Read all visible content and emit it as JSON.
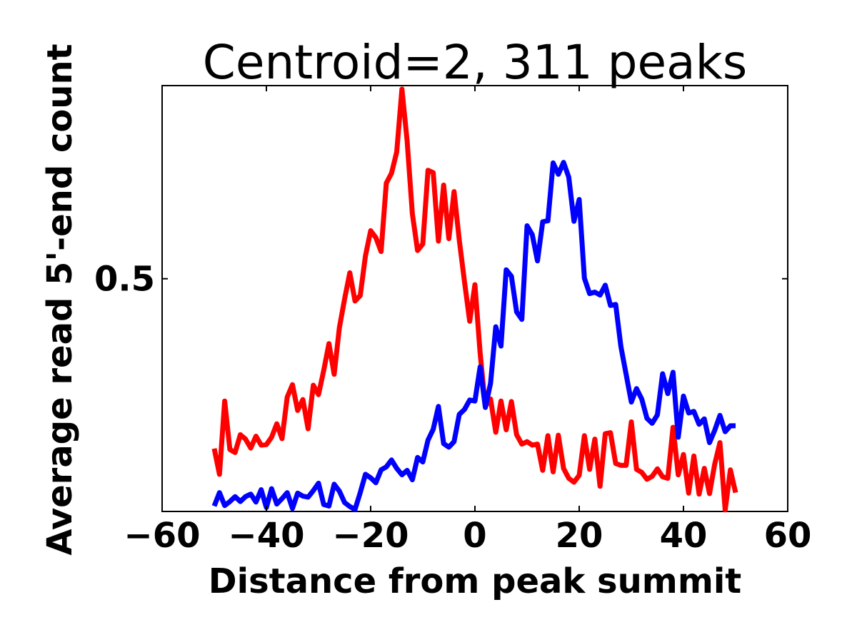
{
  "chart_data": {
    "type": "line",
    "title": "Centroid=2, 311 peaks",
    "xlabel": "Distance from peak summit",
    "ylabel": "Average read 5'-end count",
    "xlim": [
      -60,
      60
    ],
    "ylim": [
      0.03,
      0.89
    ],
    "xticks": [
      -60,
      -40,
      -20,
      0,
      20,
      40,
      60
    ],
    "xtick_labels": [
      "−60",
      "−40",
      "−20",
      "0",
      "20",
      "40",
      "60"
    ],
    "yticks": [
      0.5
    ],
    "ytick_labels": [
      "0.5"
    ],
    "grid": false,
    "series": [
      {
        "color": "#ff0000",
        "x": [
          -50,
          -49,
          -48,
          -47,
          -46,
          -45,
          -44,
          -43,
          -42,
          -41,
          -40,
          -39,
          -38,
          -37,
          -36,
          -35,
          -34,
          -33,
          -32,
          -31,
          -30,
          -29,
          -28,
          -27,
          -26,
          -25,
          -24,
          -23,
          -22,
          -21,
          -20,
          -19,
          -18,
          -17,
          -16,
          -15,
          -14,
          -13,
          -12,
          -11,
          -10,
          -9,
          -8,
          -7,
          -6,
          -5,
          -4,
          -3,
          -2,
          -1,
          0,
          1,
          2,
          3,
          4,
          5,
          6,
          7,
          8,
          9,
          10,
          11,
          12,
          13,
          14,
          15,
          16,
          17,
          18,
          19,
          20,
          21,
          22,
          23,
          24,
          25,
          26,
          27,
          28,
          29,
          30,
          31,
          32,
          33,
          34,
          35,
          36,
          37,
          38,
          39,
          40,
          41,
          42,
          43,
          44,
          45,
          46,
          47,
          48,
          49,
          50
        ],
        "y": [
          0.157,
          0.105,
          0.253,
          0.155,
          0.149,
          0.185,
          0.176,
          0.158,
          0.182,
          0.164,
          0.165,
          0.18,
          0.207,
          0.177,
          0.261,
          0.286,
          0.234,
          0.256,
          0.197,
          0.285,
          0.266,
          0.315,
          0.369,
          0.307,
          0.401,
          0.459,
          0.512,
          0.455,
          0.466,
          0.546,
          0.597,
          0.583,
          0.555,
          0.693,
          0.713,
          0.756,
          0.883,
          0.778,
          0.631,
          0.557,
          0.57,
          0.719,
          0.714,
          0.576,
          0.689,
          0.581,
          0.676,
          0.578,
          0.494,
          0.414,
          0.488,
          0.35,
          0.242,
          0.257,
          0.19,
          0.253,
          0.195,
          0.252,
          0.185,
          0.166,
          0.171,
          0.164,
          0.166,
          0.113,
          0.183,
          0.11,
          0.184,
          0.117,
          0.097,
          0.089,
          0.103,
          0.183,
          0.115,
          0.176,
          0.081,
          0.187,
          0.189,
          0.127,
          0.123,
          0.123,
          0.211,
          0.115,
          0.109,
          0.095,
          0.101,
          0.116,
          0.1,
          0.097,
          0.2,
          0.104,
          0.145,
          0.067,
          0.142,
          0.065,
          0.117,
          0.066,
          0.126,
          0.169,
          0.033,
          0.114,
          0.068
        ]
      },
      {
        "color": "#0000ff",
        "x": [
          -50,
          -49,
          -48,
          -47,
          -46,
          -45,
          -44,
          -43,
          -42,
          -41,
          -40,
          -39,
          -38,
          -37,
          -36,
          -35,
          -34,
          -33,
          -32,
          -31,
          -30,
          -29,
          -28,
          -27,
          -26,
          -25,
          -24,
          -23,
          -22,
          -21,
          -20,
          -19,
          -18,
          -17,
          -16,
          -15,
          -14,
          -13,
          -12,
          -11,
          -10,
          -9,
          -8,
          -7,
          -6,
          -5,
          -4,
          -3,
          -2,
          -1,
          0,
          1,
          2,
          3,
          4,
          5,
          6,
          7,
          8,
          9,
          10,
          11,
          12,
          13,
          14,
          15,
          16,
          17,
          18,
          19,
          20,
          21,
          22,
          23,
          24,
          25,
          26,
          27,
          28,
          29,
          30,
          31,
          32,
          33,
          34,
          35,
          36,
          37,
          38,
          39,
          40,
          41,
          42,
          43,
          44,
          45,
          46,
          47,
          48,
          49,
          50
        ],
        "y": [
          0.041,
          0.068,
          0.042,
          0.05,
          0.06,
          0.05,
          0.06,
          0.065,
          0.049,
          0.074,
          0.038,
          0.076,
          0.045,
          0.056,
          0.068,
          0.036,
          0.067,
          0.061,
          0.059,
          0.072,
          0.087,
          0.044,
          0.041,
          0.085,
          0.071,
          0.048,
          0.04,
          0.034,
          0.068,
          0.105,
          0.098,
          0.088,
          0.114,
          0.12,
          0.134,
          0.117,
          0.104,
          0.113,
          0.094,
          0.139,
          0.13,
          0.174,
          0.196,
          0.242,
          0.167,
          0.16,
          0.171,
          0.226,
          0.236,
          0.255,
          0.253,
          0.322,
          0.24,
          0.289,
          0.403,
          0.364,
          0.518,
          0.505,
          0.433,
          0.418,
          0.607,
          0.589,
          0.536,
          0.615,
          0.617,
          0.734,
          0.711,
          0.735,
          0.705,
          0.616,
          0.66,
          0.501,
          0.47,
          0.473,
          0.467,
          0.487,
          0.446,
          0.448,
          0.363,
          0.307,
          0.251,
          0.278,
          0.257,
          0.218,
          0.208,
          0.225,
          0.308,
          0.268,
          0.311,
          0.18,
          0.263,
          0.229,
          0.232,
          0.206,
          0.217,
          0.169,
          0.194,
          0.224,
          0.191,
          0.203,
          0.203
        ]
      }
    ]
  }
}
